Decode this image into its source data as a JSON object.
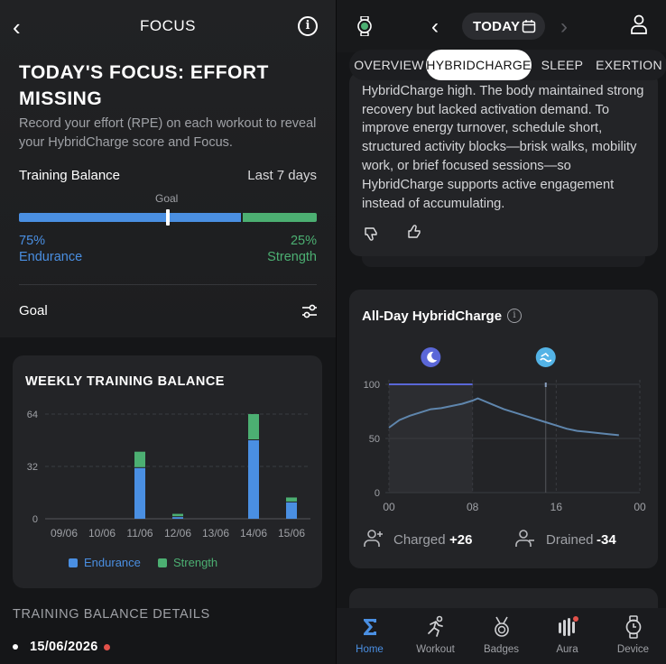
{
  "left": {
    "header": {
      "back": "‹",
      "title": "FOCUS",
      "info": "i"
    },
    "focus_title": "TODAY'S FOCUS: EFFORT MISSING",
    "focus_subtitle": "Record your effort (RPE) on each workout to reveal your HybridCharge score and Focus.",
    "training_balance": {
      "label": "Training Balance",
      "period": "Last 7 days",
      "goal_label": "Goal",
      "endurance_pct": "75%",
      "endurance_label": "Endurance",
      "strength_pct": "25%",
      "strength_label": "Strength",
      "endurance_fraction": 0.75
    },
    "goal_row": {
      "label": "Goal"
    },
    "weekly": {
      "title": "WEEKLY TRAINING BALANCE"
    },
    "details": {
      "title": "TRAINING BALANCE DETAILS",
      "first_date": "15/06/2026"
    }
  },
  "right": {
    "header": {
      "today": "TODAY"
    },
    "tabs": [
      "OVERVIEW",
      "HYBRIDCHARGE",
      "SLEEP",
      "EXERTION"
    ],
    "active_tab": "HYBRIDCHARGE",
    "insight_text": "Low exercise expenditure left evening HybridCharge high. The body maintained strong recovery but lacked activation demand. To improve energy turnover, schedule short, structured activity blocks—brisk walks, mobility work, or brief focused sessions—so HybridCharge supports active engagement instead of accumulating.",
    "hc_card": {
      "title": "All-Day HybridCharge",
      "charged_label": "Charged",
      "charged_value": "+26",
      "drained_label": "Drained",
      "drained_value": "-34"
    },
    "nav": [
      {
        "label": "Home",
        "icon": "sigma-home-icon",
        "active": true
      },
      {
        "label": "Workout",
        "icon": "runner-icon",
        "active": false
      },
      {
        "label": "Badges",
        "icon": "medal-icon",
        "active": false
      },
      {
        "label": "Aura",
        "icon": "aura-bars-icon",
        "active": false,
        "badge": true
      },
      {
        "label": "Device",
        "icon": "watch-icon",
        "active": false
      }
    ]
  },
  "colors": {
    "endurance": "#4a8fe2",
    "strength": "#4caf72",
    "hc_line": "#5f86ad",
    "sleep_icon": "#5a67d8",
    "swim_icon": "#53b3e6"
  },
  "chart_data": [
    {
      "type": "bar",
      "title": "WEEKLY TRAINING BALANCE",
      "categories": [
        "09/06",
        "10/06",
        "11/06",
        "12/06",
        "13/06",
        "14/06",
        "15/06"
      ],
      "series": [
        {
          "name": "Endurance",
          "values": [
            0,
            0,
            31,
            1,
            0,
            48,
            10
          ]
        },
        {
          "name": "Strength",
          "values": [
            0,
            0,
            10,
            2,
            0,
            16,
            3
          ]
        }
      ],
      "stacked": true,
      "yticks": [
        0,
        32,
        64
      ],
      "ylim": [
        0,
        64
      ]
    },
    {
      "type": "area",
      "title": "All-Day HybridCharge",
      "xticks": [
        "00",
        "08",
        "16",
        "00"
      ],
      "yticks": [
        0,
        50,
        100
      ],
      "ylim": [
        0,
        100
      ],
      "x_hours": [
        0,
        1,
        2,
        3,
        4,
        5,
        6,
        7,
        8,
        8.5,
        9,
        10,
        11,
        12,
        13,
        14,
        15,
        16,
        17,
        18,
        19,
        20,
        21,
        22,
        23
      ],
      "y": [
        60,
        67,
        71,
        74,
        77,
        78,
        80,
        82,
        85,
        87,
        85,
        81,
        77,
        74,
        71,
        68,
        65,
        62,
        59,
        57,
        56,
        55,
        54,
        53,
        null
      ],
      "sleep_span_hours": [
        0,
        8
      ],
      "sleep_level": 100,
      "event_hour": 15
    }
  ]
}
